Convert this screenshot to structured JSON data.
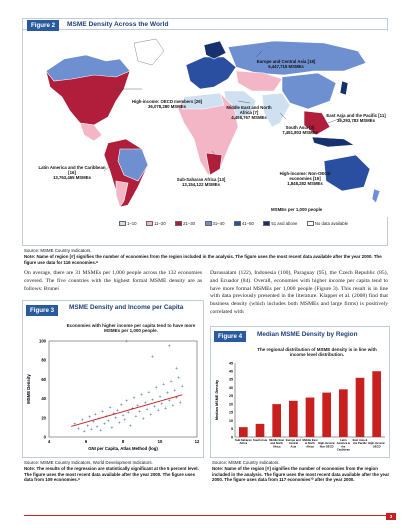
{
  "figure2": {
    "tag": "Figure 2",
    "title": "MSME Density Across the World",
    "regions": [
      {
        "name": "Europe and Central Asia [18]",
        "value": "6,447,715 MSMEs"
      },
      {
        "name": "High-income: OECD members [29]",
        "value": "36,078,280 MSMEs"
      },
      {
        "name": "Middle East and North Africa [7]",
        "value": "4,498,767 MSMEs"
      },
      {
        "name": "East Asia and the Pacific [11]",
        "value": "39,293,783 MSMEs"
      },
      {
        "name": "South Asia [3]",
        "value": "7,451,803 MSMEs"
      },
      {
        "name": "Latin America and the Caribbean [16]",
        "value": "13,763,465 MSMEs"
      },
      {
        "name": "Sub-Saharan Africa [13]",
        "value": "13,154,122 MSMEs"
      },
      {
        "name": "High-income: Non-OECD economies [19]",
        "value": "1,848,282 MSMEs"
      }
    ],
    "legend_title": "MSMEs per 1,000 people",
    "legend": [
      {
        "label": "1–10",
        "color": "#cfe0f0"
      },
      {
        "label": "11–20",
        "color": "#f3b6c6"
      },
      {
        "label": "21–30",
        "color": "#b01e3c"
      },
      {
        "label": "31–40",
        "color": "#6e8fd0"
      },
      {
        "label": "41–50",
        "color": "#2a4fa0"
      },
      {
        "label": "51 and above",
        "color": "#17306e"
      },
      {
        "label": "No data available",
        "color": "#ffffff"
      }
    ],
    "source": "Source: MSME Country Indicators.",
    "note": "Note: Name of region [#] signifies the number of economies from the region included in the analysis. The figure uses the most recent data available after the year 2000. The figure use data for 116 economies.⁸"
  },
  "body_left": "On average, there are 31 MSMEs per 1,000 people across the 132 economies covered. The five countries with the highest formal MSME density are as follows: Brunei",
  "body_right": "Darussalam (122), Indonesia (100), Paraguay (95), the Czech Republic (85), and Ecuador (84). Overall, economies with higher income per capita tend to have more formal MSMEs per 1,000 people (Figure 3). This result is in line with data previously presented in the literature. Klapper et al. (2008) find that business density (which includes both MSMEs and large firms) is positively correlated with",
  "figure3": {
    "tag": "Figure 3",
    "title": "MSME Density and Income per Capita",
    "subtitle": "Economies with higher income per capita tend to have more MSMEs per 1,000 people.",
    "source": "Source: MSME Country Indicators, World Development Indicators.",
    "note": "Note: The results of the regression are statistically significant at the 5 percent level. The figure uses the most recent data available after the year 2000. The figure uses data from 109 economies.⁹",
    "chart_data": {
      "type": "scatter",
      "xlabel": "GNI per Capita, Atlas Method (log)",
      "ylabel": "MSME Density",
      "xlim": [
        4,
        12
      ],
      "ylim": [
        0,
        100
      ],
      "xticks": [
        "4",
        "6",
        "8",
        "10",
        "12"
      ],
      "yticks": [
        "0",
        "20",
        "40",
        "60",
        "80",
        "100"
      ],
      "trendline": [
        [
          5.2,
          11
        ],
        [
          11.2,
          44
        ]
      ],
      "points": [
        [
          5.4,
          14
        ],
        [
          5.6,
          9
        ],
        [
          5.8,
          18
        ],
        [
          5.9,
          6
        ],
        [
          6.1,
          12
        ],
        [
          6.2,
          21
        ],
        [
          6.3,
          8
        ],
        [
          6.4,
          16
        ],
        [
          6.5,
          24
        ],
        [
          6.6,
          11
        ],
        [
          6.7,
          19
        ],
        [
          6.8,
          7
        ],
        [
          6.9,
          27
        ],
        [
          7.0,
          14
        ],
        [
          7.1,
          22
        ],
        [
          7.2,
          17
        ],
        [
          7.3,
          31
        ],
        [
          7.4,
          10
        ],
        [
          7.5,
          25
        ],
        [
          7.6,
          20
        ],
        [
          7.7,
          28
        ],
        [
          7.8,
          15
        ],
        [
          7.9,
          34
        ],
        [
          8.0,
          23
        ],
        [
          8.1,
          18
        ],
        [
          8.2,
          38
        ],
        [
          8.3,
          26
        ],
        [
          8.4,
          12
        ],
        [
          8.5,
          30
        ],
        [
          8.6,
          41
        ],
        [
          8.7,
          22
        ],
        [
          8.8,
          33
        ],
        [
          8.9,
          27
        ],
        [
          9.0,
          44
        ],
        [
          9.1,
          19
        ],
        [
          9.2,
          36
        ],
        [
          9.3,
          29
        ],
        [
          9.4,
          47
        ],
        [
          9.5,
          24
        ],
        [
          9.6,
          39
        ],
        [
          9.7,
          32
        ],
        [
          9.8,
          52
        ],
        [
          9.9,
          28
        ],
        [
          10.0,
          42
        ],
        [
          10.1,
          35
        ],
        [
          10.2,
          55
        ],
        [
          10.3,
          30
        ],
        [
          10.4,
          46
        ],
        [
          10.5,
          38
        ],
        [
          10.6,
          58
        ],
        [
          10.7,
          33
        ],
        [
          10.8,
          49
        ],
        [
          10.9,
          41
        ],
        [
          11.0,
          62
        ],
        [
          11.1,
          36
        ],
        [
          11.2,
          53
        ],
        [
          10.5,
          95
        ],
        [
          9.6,
          84
        ],
        [
          10.9,
          72
        ],
        [
          8.2,
          100
        ]
      ]
    }
  },
  "figure4": {
    "tag": "Figure 4",
    "title": "Median MSME Density by Region",
    "subtitle": "The regional distribution of MSME density is in line with income level distribution.",
    "source": "Source: MSME Country Indicators.",
    "note": "Note: Name of the region [#] signifies the number of economies from the region included in the analysis. The figure uses the most recent data available after the year 2000. The figure uses data from 117 economies¹⁰ after the year 2000.",
    "chart_data": {
      "type": "bar",
      "ylabel": "Median MSME Density",
      "ylim": [
        0,
        45
      ],
      "yticks": [
        "0",
        "5",
        "10",
        "15",
        "20",
        "25",
        "30",
        "35",
        "40",
        "45"
      ],
      "color": "#c8201e",
      "categories": [
        "Sub-Saharan Africa",
        "South Asia",
        "Middle East and North Africa",
        "Europe and Central Asia",
        "Middle East & North Africa",
        "High-income: Non-OECD",
        "Latin America & the Caribbean",
        "East Asia & the Pacific",
        "High-income: OECD"
      ],
      "values": [
        6,
        8,
        20,
        22,
        24,
        27,
        29,
        36,
        40
      ]
    }
  },
  "page_number": "3"
}
